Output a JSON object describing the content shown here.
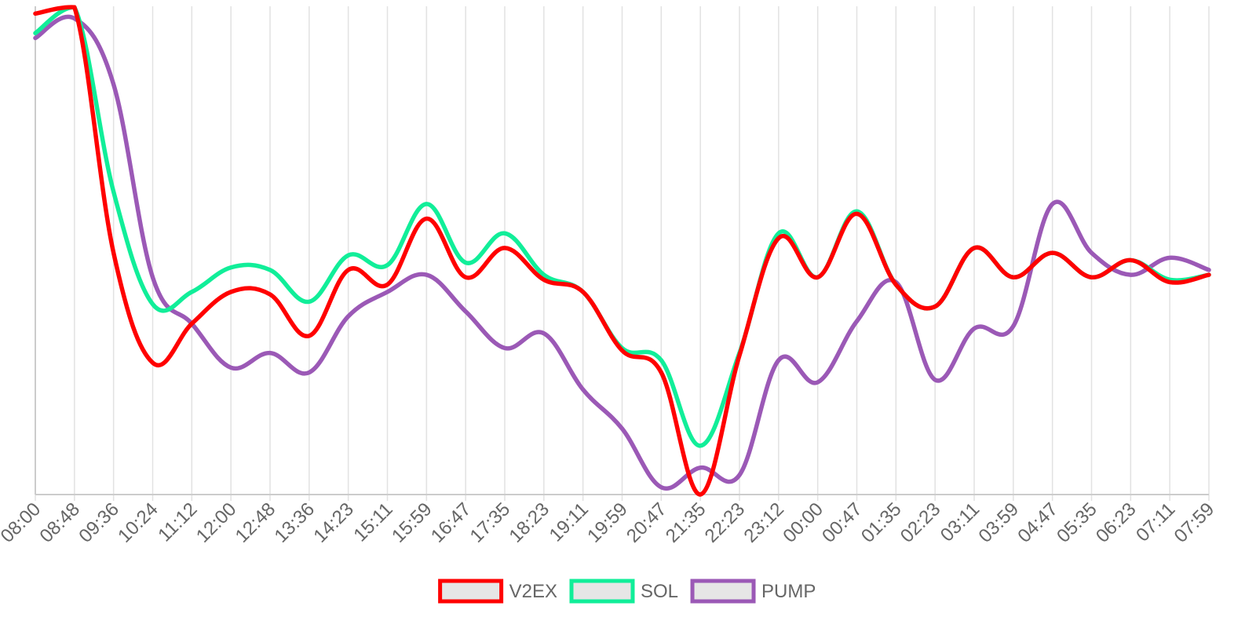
{
  "chart_data": {
    "type": "line",
    "title": "",
    "xlabel": "",
    "ylabel": "",
    "y_axis_labels_shown": false,
    "grid": "vertical",
    "legend_position": "bottom-center",
    "categories": [
      "08:00",
      "08:48",
      "09:36",
      "10:24",
      "11:12",
      "12:00",
      "12:48",
      "13:36",
      "14:23",
      "15:11",
      "15:59",
      "16:47",
      "17:35",
      "18:23",
      "19:11",
      "19:59",
      "20:47",
      "21:35",
      "22:23",
      "23:12",
      "00:00",
      "00:47",
      "01:35",
      "02:23",
      "03:11",
      "03:59",
      "04:47",
      "05:35",
      "06:23",
      "07:11",
      "07:59"
    ],
    "ylim": [
      0,
      100
    ],
    "series": [
      {
        "name": "V2EX",
        "color": "#ff0000",
        "values": [
          98.5,
          99.8,
          49.5,
          27.0,
          35.0,
          41.5,
          41.0,
          32.5,
          46.0,
          43.0,
          56.5,
          44.5,
          50.5,
          44.0,
          41.5,
          29.5,
          25.0,
          0.0,
          28.5,
          52.5,
          44.5,
          57.5,
          43.0,
          38.5,
          50.5,
          44.5,
          49.5,
          44.5,
          48.0,
          43.5,
          45.0
        ]
      },
      {
        "name": "SOL",
        "color": "#11ee99",
        "values": [
          94.5,
          99.8,
          62.0,
          39.0,
          41.5,
          46.5,
          46.0,
          39.5,
          49.0,
          47.0,
          59.5,
          47.5,
          53.5,
          45.0,
          41.5,
          30.0,
          27.5,
          10.0,
          29.0,
          53.5,
          44.5,
          58.0,
          43.0,
          38.5,
          50.5,
          44.5,
          49.5,
          44.5,
          48.0,
          44.0,
          45.0
        ]
      },
      {
        "name": "PUMP",
        "color": "#9b59b6",
        "values": [
          93.5,
          97.5,
          84.0,
          44.5,
          35.0,
          26.0,
          29.0,
          25.0,
          36.5,
          41.5,
          45.0,
          37.5,
          30.0,
          33.0,
          21.5,
          13.5,
          1.5,
          5.5,
          4.0,
          27.5,
          23.0,
          35.5,
          43.5,
          23.5,
          34.0,
          34.5,
          59.5,
          49.5,
          45.0,
          48.5,
          46.0
        ]
      }
    ]
  }
}
